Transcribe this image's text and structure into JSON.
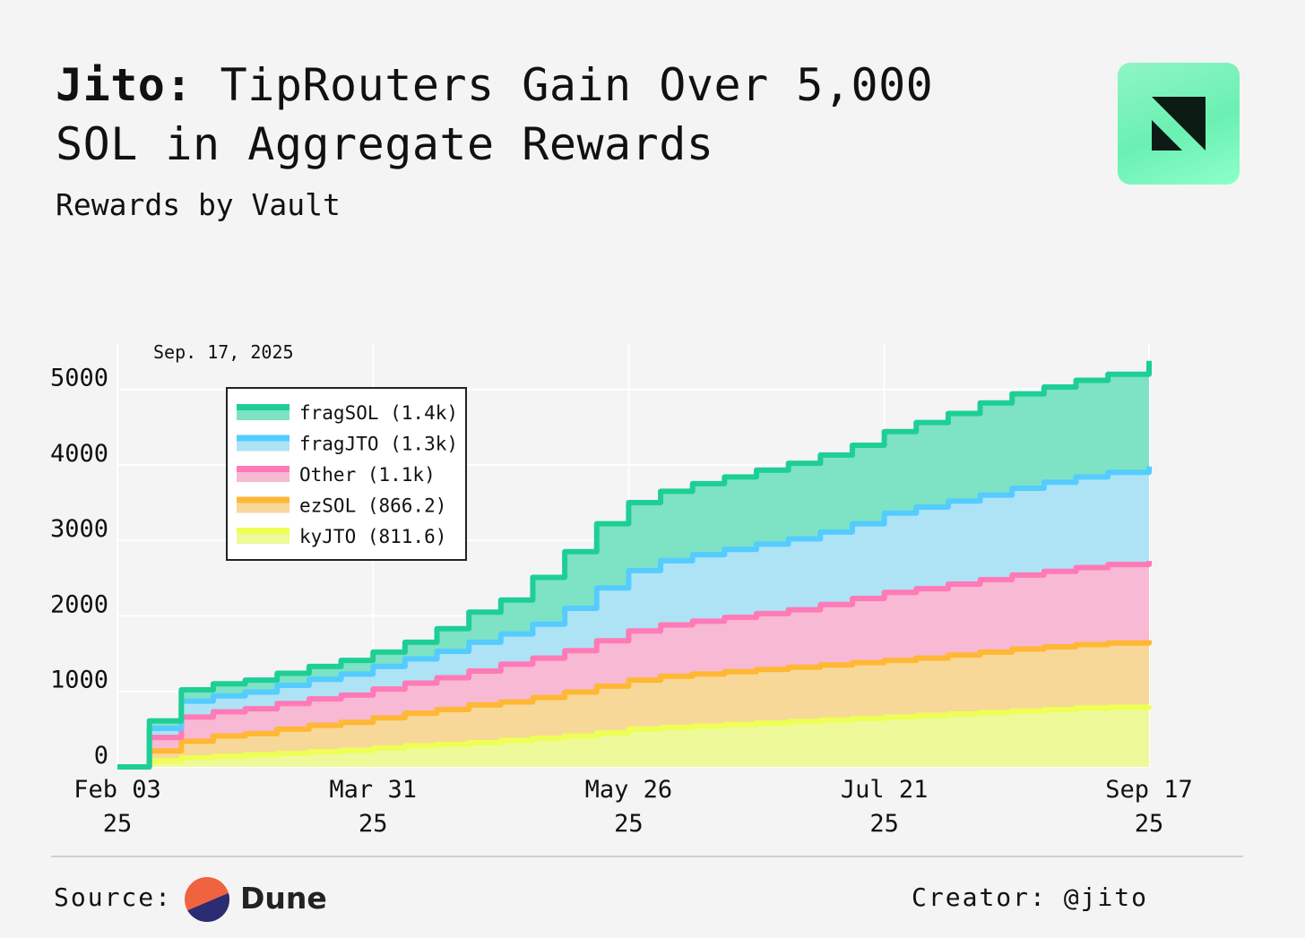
{
  "header": {
    "title_bold": "Jito:",
    "title_rest": " TipRouters Gain Over 5,000 SOL in Aggregate Rewards",
    "subtitle": "Rewards by Vault"
  },
  "logo": {
    "icon": "jito-logo-icon",
    "color": "#7ff4bf"
  },
  "footer": {
    "source_label": "Source:",
    "source_name": "Dune",
    "creator": "Creator: @jito"
  },
  "chart_data": {
    "type": "area",
    "stacked": true,
    "title": "Rewards by Vault",
    "annotation": "Sep. 17, 2025",
    "xlabel": "",
    "ylabel": "",
    "ylim": [
      0,
      5600
    ],
    "yticks": [
      0,
      1000,
      2000,
      3000,
      4000,
      5000
    ],
    "xlim": [
      "2025-02-03",
      "2025-09-17"
    ],
    "xticks": [
      {
        "date": "2025-02-03",
        "label_line1": "Feb 03",
        "label_line2": "25"
      },
      {
        "date": "2025-03-31",
        "label_line1": "Mar 31",
        "label_line2": "25"
      },
      {
        "date": "2025-05-26",
        "label_line1": "May 26",
        "label_line2": "25"
      },
      {
        "date": "2025-07-21",
        "label_line1": "Jul 21",
        "label_line2": "25"
      },
      {
        "date": "2025-09-17",
        "label_line1": "Sep 17",
        "label_line2": "25"
      }
    ],
    "grid": true,
    "legend_position": "top-left",
    "x": [
      "2025-02-03",
      "2025-02-10",
      "2025-02-17",
      "2025-02-24",
      "2025-03-03",
      "2025-03-10",
      "2025-03-17",
      "2025-03-24",
      "2025-03-31",
      "2025-04-07",
      "2025-04-14",
      "2025-04-21",
      "2025-04-28",
      "2025-05-05",
      "2025-05-12",
      "2025-05-19",
      "2025-05-26",
      "2025-06-02",
      "2025-06-09",
      "2025-06-16",
      "2025-06-23",
      "2025-06-30",
      "2025-07-07",
      "2025-07-14",
      "2025-07-21",
      "2025-07-28",
      "2025-08-04",
      "2025-08-11",
      "2025-08-18",
      "2025-08-25",
      "2025-09-01",
      "2025-09-08",
      "2025-09-17"
    ],
    "series": [
      {
        "name": "kyJTO",
        "legend_label": "kyJTO (811.6)",
        "color": "#eeff55",
        "fill": "#eef99a",
        "values": [
          0,
          80,
          120,
          140,
          160,
          180,
          200,
          220,
          250,
          280,
          300,
          320,
          350,
          380,
          410,
          450,
          500,
          520,
          540,
          560,
          580,
          600,
          620,
          640,
          660,
          680,
          700,
          720,
          740,
          760,
          780,
          790,
          811.6
        ]
      },
      {
        "name": "ezSOL",
        "legend_label": "ezSOL (866.2)",
        "color": "#ffb833",
        "fill": "#f8d898",
        "values": [
          0,
          130,
          220,
          270,
          280,
          320,
          350,
          370,
          400,
          430,
          460,
          500,
          510,
          540,
          580,
          620,
          650,
          680,
          690,
          700,
          710,
          720,
          730,
          740,
          750,
          760,
          780,
          800,
          820,
          830,
          840,
          850,
          866.2
        ]
      },
      {
        "name": "Other",
        "legend_label": "Other (1.1k)",
        "color": "#ff7ab6",
        "fill": "#f7b9d4",
        "values": [
          0,
          180,
          320,
          320,
          330,
          340,
          350,
          360,
          380,
          400,
          420,
          450,
          500,
          520,
          550,
          600,
          650,
          680,
          700,
          720,
          740,
          760,
          800,
          850,
          900,
          920,
          940,
          960,
          980,
          1000,
          1020,
          1040,
          1050
        ]
      },
      {
        "name": "fragJTO",
        "legend_label": "fragJTO (1.3k)",
        "color": "#55ccff",
        "fill": "#aee3f6",
        "values": [
          0,
          120,
          210,
          210,
          220,
          240,
          260,
          280,
          300,
          320,
          350,
          380,
          400,
          450,
          560,
          700,
          800,
          850,
          880,
          900,
          920,
          940,
          960,
          990,
          1050,
          1080,
          1100,
          1120,
          1150,
          1180,
          1200,
          1220,
          1250
        ]
      },
      {
        "name": "fragSOL",
        "legend_label": "fragSOL (1.4k)",
        "color": "#1ecf95",
        "fill": "#7ee2c4",
        "values": [
          0,
          100,
          150,
          160,
          160,
          160,
          170,
          180,
          190,
          220,
          300,
          400,
          450,
          620,
          750,
          850,
          900,
          920,
          940,
          960,
          980,
          1000,
          1020,
          1040,
          1080,
          1120,
          1160,
          1220,
          1250,
          1260,
          1280,
          1300,
          1400
        ]
      }
    ]
  }
}
